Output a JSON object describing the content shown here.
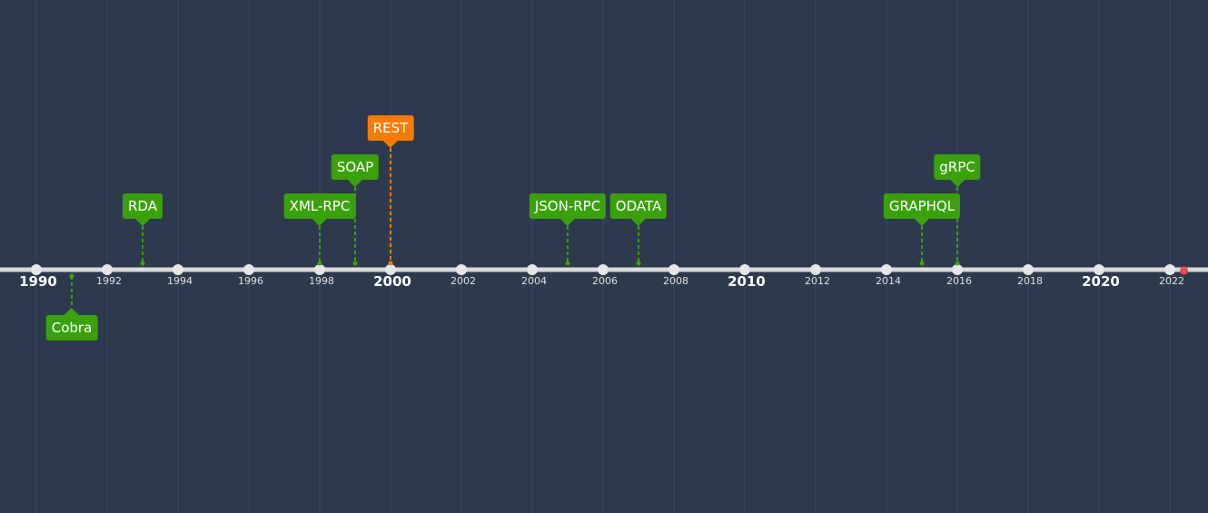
{
  "timeline": {
    "start_year": 1990,
    "end_year": 2022,
    "major_tick_labels": [
      "1990",
      "2000",
      "2010",
      "2020"
    ],
    "minor_tick_labels": [
      "1992",
      "1994",
      "1996",
      "1998",
      "2002",
      "2004",
      "2006",
      "2008",
      "2012",
      "2014",
      "2016",
      "2018",
      "2022"
    ],
    "now_marker": 2022.4,
    "events": [
      {
        "label": "Cobra",
        "year": 1991,
        "side": "below",
        "color": "#3aa10d"
      },
      {
        "label": "RDA",
        "year": 1993,
        "side": "above",
        "color": "#3aa10d"
      },
      {
        "label": "XML-RPC",
        "year": 1998,
        "side": "above",
        "color": "#3aa10d"
      },
      {
        "label": "SOAP",
        "year": 1999,
        "side": "above",
        "color": "#3aa10d"
      },
      {
        "label": "REST",
        "year": 2000,
        "side": "above",
        "color": "#f57c00"
      },
      {
        "label": "JSON-RPC",
        "year": 2005,
        "side": "above",
        "color": "#3aa10d"
      },
      {
        "label": "ODATA",
        "year": 2007,
        "side": "above",
        "color": "#3aa10d"
      },
      {
        "label": "GRAPHQL",
        "year": 2015,
        "side": "above",
        "color": "#3aa10d"
      },
      {
        "label": "gRPC",
        "year": 2016,
        "side": "above",
        "color": "#3aa10d"
      }
    ]
  },
  "colors": {
    "background": "#2d3a4e",
    "axis": "#d9d9d9",
    "grid": "#3a4a5e",
    "now_marker": "#ef4b4b"
  }
}
